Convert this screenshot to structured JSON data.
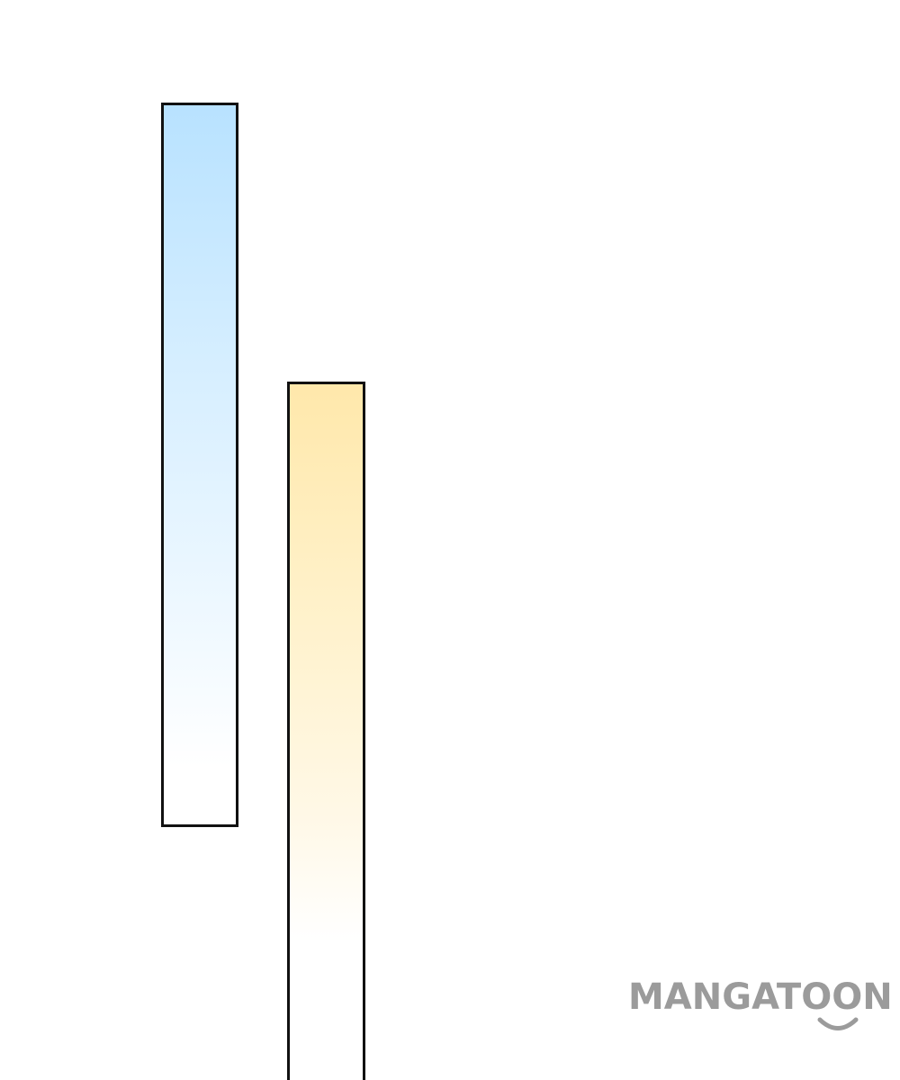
{
  "watermark": {
    "text": "MANGATOON",
    "color": "#9b9b9b"
  },
  "panels": [
    {
      "name": "blue-panel",
      "gradient_colors": [
        "#b8e2ff",
        "#ffffff"
      ],
      "border_color": "#111111"
    },
    {
      "name": "yellow-panel",
      "gradient_colors": [
        "#ffe8ab",
        "#ffffff"
      ],
      "border_color": "#111111"
    }
  ]
}
